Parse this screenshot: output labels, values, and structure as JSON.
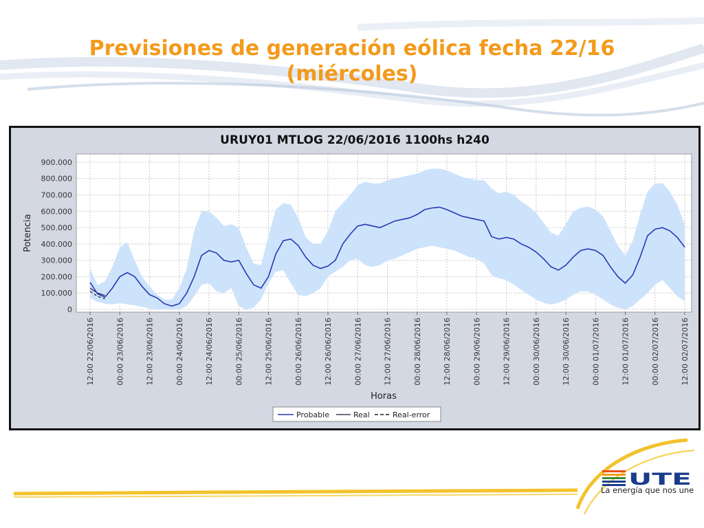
{
  "slide": {
    "title_line1": "Previsiones de generación eólica fecha 22/16",
    "title_line2": "(miércoles)"
  },
  "logo": {
    "name": "UTE",
    "tagline": "La energía que nos une"
  },
  "colors": {
    "title": "#f39a1b",
    "band": "#cde3fb",
    "probable": "#2a37b6",
    "frame_bg": "#d4d8e3",
    "plot_bg": "#ffffff"
  },
  "chart_data": {
    "type": "area",
    "title": "URUY01  MTLOG  22/06/2016  1100hs   h240",
    "xlabel": "Horas",
    "ylabel": "Potencia",
    "x_unit": "hours from 12:00 22/06/2016",
    "xlim": [
      0,
      240
    ],
    "ylim": [
      0,
      950000
    ],
    "y_ticks": [
      "0",
      "100.000",
      "200.000",
      "300.000",
      "400.000",
      "500.000",
      "600.000",
      "700.000",
      "800.000",
      "900.000"
    ],
    "y_tick_values": [
      0,
      100000,
      200000,
      300000,
      400000,
      500000,
      600000,
      700000,
      800000,
      900000
    ],
    "x_tick_labels": [
      "12:00 22/06/2016",
      "00:00 23/06/2016",
      "12:00 23/06/2016",
      "00:00 24/06/2016",
      "12:00 24/06/2016",
      "00:00 25/06/2016",
      "12:00 25/06/2016",
      "00:00 26/06/2016",
      "12:00 26/06/2016",
      "00:00 27/06/2016",
      "12:00 27/06/2016",
      "00:00 28/06/2016",
      "12:00 28/06/2016",
      "00:00 29/06/2016",
      "12:00 29/06/2016",
      "00:00 30/06/2016",
      "12:00 30/06/2016",
      "00:00 01/07/2016",
      "12:00 01/07/2016",
      "00:00 02/07/2016",
      "12:00 02/07/2016"
    ],
    "grid": true,
    "legend_position": "bottom",
    "legend": [
      "Probable",
      "Real",
      "Real-error"
    ],
    "series": [
      {
        "name": "Probable",
        "x": [
          0,
          3,
          6,
          9,
          12,
          15,
          18,
          21,
          24,
          27,
          30,
          33,
          36,
          39,
          42,
          45,
          48,
          51,
          54,
          57,
          60,
          63,
          66,
          69,
          72,
          75,
          78,
          81,
          84,
          87,
          90,
          93,
          96,
          99,
          102,
          105,
          108,
          111,
          114,
          117,
          120,
          123,
          126,
          129,
          132,
          135,
          138,
          141,
          144,
          147,
          150,
          153,
          156,
          159,
          162,
          165,
          168,
          171,
          174,
          177,
          180,
          183,
          186,
          189,
          192,
          195,
          198,
          201,
          204,
          207,
          210,
          213,
          216,
          219,
          222,
          225,
          228,
          231,
          234,
          237,
          240
        ],
        "values": [
          165000,
          95000,
          75000,
          130000,
          200000,
          225000,
          200000,
          140000,
          90000,
          70000,
          35000,
          20000,
          35000,
          100000,
          200000,
          330000,
          360000,
          345000,
          300000,
          290000,
          300000,
          220000,
          150000,
          130000,
          200000,
          340000,
          420000,
          430000,
          390000,
          320000,
          270000,
          250000,
          265000,
          300000,
          400000,
          460000,
          510000,
          520000,
          510000,
          500000,
          520000,
          540000,
          550000,
          560000,
          580000,
          610000,
          620000,
          625000,
          610000,
          590000,
          570000,
          560000,
          550000,
          540000,
          445000,
          430000,
          440000,
          430000,
          400000,
          380000,
          350000,
          310000,
          260000,
          240000,
          270000,
          320000,
          360000,
          370000,
          360000,
          330000,
          260000,
          200000,
          160000,
          210000,
          320000,
          450000,
          490000,
          500000,
          480000,
          440000,
          380000
        ]
      },
      {
        "name": "Real",
        "x": [
          0,
          3,
          6
        ],
        "values": [
          130000,
          100000,
          85000
        ]
      },
      {
        "name": "Real-error",
        "x": [
          0,
          3,
          6
        ],
        "values": [
          110000,
          80000,
          65000
        ]
      },
      {
        "name": "band_upper",
        "x": [
          0,
          3,
          6,
          9,
          12,
          15,
          18,
          21,
          24,
          27,
          30,
          33,
          36,
          39,
          42,
          45,
          48,
          51,
          54,
          57,
          60,
          63,
          66,
          69,
          72,
          75,
          78,
          81,
          84,
          87,
          90,
          93,
          96,
          99,
          102,
          105,
          108,
          111,
          114,
          117,
          120,
          123,
          126,
          129,
          132,
          135,
          138,
          141,
          144,
          147,
          150,
          153,
          156,
          159,
          162,
          165,
          168,
          171,
          174,
          177,
          180,
          183,
          186,
          189,
          192,
          195,
          198,
          201,
          204,
          207,
          210,
          213,
          216,
          219,
          222,
          225,
          228,
          231,
          234,
          237,
          240
        ],
        "values": [
          250000,
          150000,
          170000,
          260000,
          380000,
          410000,
          300000,
          200000,
          140000,
          90000,
          60000,
          60000,
          130000,
          250000,
          480000,
          600000,
          600000,
          560000,
          510000,
          520000,
          500000,
          380000,
          280000,
          270000,
          450000,
          610000,
          650000,
          640000,
          560000,
          440000,
          400000,
          400000,
          480000,
          600000,
          650000,
          700000,
          760000,
          780000,
          770000,
          770000,
          790000,
          800000,
          810000,
          820000,
          830000,
          850000,
          860000,
          860000,
          850000,
          830000,
          810000,
          800000,
          790000,
          790000,
          740000,
          710000,
          720000,
          700000,
          660000,
          630000,
          590000,
          530000,
          470000,
          450000,
          520000,
          600000,
          620000,
          630000,
          610000,
          570000,
          480000,
          390000,
          330000,
          420000,
          580000,
          720000,
          770000,
          770000,
          720000,
          640000,
          520000
        ]
      },
      {
        "name": "band_lower",
        "x": [
          0,
          3,
          6,
          9,
          12,
          15,
          18,
          21,
          24,
          27,
          30,
          33,
          36,
          39,
          42,
          45,
          48,
          51,
          54,
          57,
          60,
          63,
          66,
          69,
          72,
          75,
          78,
          81,
          84,
          87,
          90,
          93,
          96,
          99,
          102,
          105,
          108,
          111,
          114,
          117,
          120,
          123,
          126,
          129,
          132,
          135,
          138,
          141,
          144,
          147,
          150,
          153,
          156,
          159,
          162,
          165,
          168,
          171,
          174,
          177,
          180,
          183,
          186,
          189,
          192,
          195,
          198,
          201,
          204,
          207,
          210,
          213,
          216,
          219,
          222,
          225,
          228,
          231,
          234,
          237,
          240
        ],
        "values": [
          70000,
          45000,
          35000,
          30000,
          40000,
          30000,
          25000,
          15000,
          5000,
          0,
          0,
          0,
          0,
          20000,
          80000,
          150000,
          160000,
          110000,
          100000,
          130000,
          20000,
          0,
          10000,
          60000,
          160000,
          230000,
          240000,
          160000,
          90000,
          80000,
          100000,
          130000,
          200000,
          230000,
          260000,
          300000,
          310000,
          270000,
          260000,
          270000,
          300000,
          310000,
          330000,
          350000,
          370000,
          380000,
          390000,
          380000,
          370000,
          360000,
          340000,
          320000,
          310000,
          280000,
          210000,
          190000,
          180000,
          150000,
          120000,
          90000,
          60000,
          40000,
          30000,
          40000,
          60000,
          90000,
          110000,
          110000,
          90000,
          60000,
          30000,
          10000,
          0,
          20000,
          60000,
          100000,
          150000,
          180000,
          130000,
          80000,
          50000
        ]
      }
    ]
  }
}
